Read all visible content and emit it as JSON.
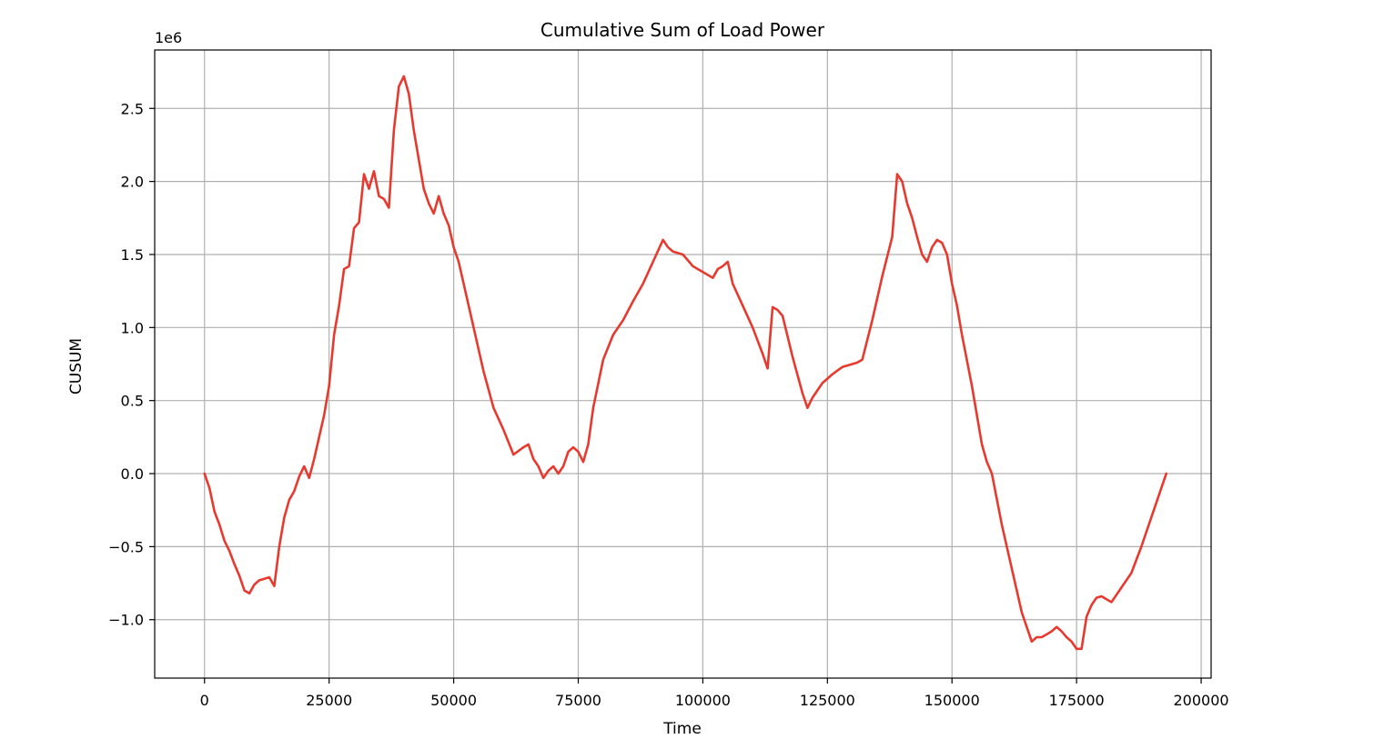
{
  "chart_data": {
    "type": "line",
    "title": "Cumulative Sum of Load Power",
    "xlabel": "Time",
    "ylabel": "CUSUM",
    "y_offset_label": "1e6",
    "xlim": [
      -10000,
      202000
    ],
    "ylim": [
      -1.4,
      2.9
    ],
    "grid": true,
    "line_color": "#e8392f",
    "x_ticks": [
      0,
      25000,
      50000,
      75000,
      100000,
      125000,
      150000,
      175000,
      200000
    ],
    "y_ticks": [
      -1.0,
      -0.5,
      0.0,
      0.5,
      1.0,
      1.5,
      2.0,
      2.5
    ],
    "x_tick_labels": [
      "0",
      "25000",
      "50000",
      "75000",
      "100000",
      "125000",
      "150000",
      "175000",
      "200000"
    ],
    "y_tick_labels": [
      "−1.0",
      "−0.5",
      "0.0",
      "0.5",
      "1.0",
      "1.5",
      "2.0",
      "2.5"
    ],
    "series": [
      {
        "x": [
          0,
          1000,
          2000,
          3000,
          4000,
          5000,
          6000,
          7000,
          8000,
          9000,
          10000,
          11000,
          12000,
          13000,
          14000,
          15000,
          16000,
          17000,
          18000,
          19000,
          20000,
          21000,
          22000,
          23000,
          24000,
          25000,
          26000,
          27000,
          28000,
          29000,
          30000,
          31000,
          32000,
          33000,
          34000,
          35000,
          36000,
          37000,
          38000,
          39000,
          40000,
          41000,
          42000,
          43000,
          44000,
          45000,
          46000,
          47000,
          48000,
          49000,
          50000,
          51000,
          52000,
          53000,
          54000,
          56000,
          58000,
          60000,
          62000,
          64000,
          65000,
          66000,
          67000,
          68000,
          69000,
          70000,
          71000,
          72000,
          73000,
          74000,
          75000,
          76000,
          77000,
          78000,
          80000,
          82000,
          84000,
          86000,
          88000,
          90000,
          92000,
          93000,
          94000,
          96000,
          98000,
          100000,
          102000,
          103000,
          104000,
          105000,
          106000,
          108000,
          110000,
          112000,
          113000,
          114000,
          115000,
          116000,
          118000,
          120000,
          121000,
          122000,
          124000,
          126000,
          128000,
          130000,
          131000,
          132000,
          134000,
          136000,
          138000,
          139000,
          140000,
          141000,
          142000,
          143000,
          144000,
          145000,
          146000,
          147000,
          148000,
          149000,
          150000,
          151000,
          152000,
          154000,
          156000,
          157000,
          158000,
          160000,
          162000,
          164000,
          166000,
          167000,
          168000,
          170000,
          171000,
          172000,
          173000,
          174000,
          175000,
          176000,
          177000,
          178000,
          179000,
          180000,
          182000,
          184000,
          186000,
          188000,
          190000,
          192000,
          193000
        ],
        "y": [
          0.0,
          -0.1,
          -0.26,
          -0.35,
          -0.46,
          -0.53,
          -0.62,
          -0.7,
          -0.8,
          -0.82,
          -0.76,
          -0.73,
          -0.72,
          -0.71,
          -0.77,
          -0.5,
          -0.3,
          -0.18,
          -0.12,
          -0.02,
          0.05,
          -0.03,
          0.1,
          0.25,
          0.4,
          0.6,
          0.95,
          1.15,
          1.4,
          1.42,
          1.68,
          1.72,
          2.05,
          1.95,
          2.07,
          1.9,
          1.88,
          1.82,
          2.35,
          2.65,
          2.72,
          2.6,
          2.35,
          2.15,
          1.95,
          1.85,
          1.78,
          1.9,
          1.78,
          1.7,
          1.55,
          1.45,
          1.3,
          1.15,
          1.0,
          0.7,
          0.45,
          0.3,
          0.13,
          0.18,
          0.2,
          0.1,
          0.05,
          -0.03,
          0.02,
          0.05,
          0.0,
          0.05,
          0.15,
          0.18,
          0.15,
          0.08,
          0.2,
          0.45,
          0.78,
          0.95,
          1.05,
          1.18,
          1.3,
          1.45,
          1.6,
          1.55,
          1.52,
          1.5,
          1.42,
          1.38,
          1.34,
          1.4,
          1.42,
          1.45,
          1.3,
          1.15,
          1.0,
          0.82,
          0.72,
          1.14,
          1.12,
          1.08,
          0.8,
          0.55,
          0.45,
          0.52,
          0.62,
          0.68,
          0.73,
          0.75,
          0.76,
          0.78,
          1.05,
          1.35,
          1.62,
          2.05,
          2.0,
          1.85,
          1.75,
          1.62,
          1.5,
          1.45,
          1.55,
          1.6,
          1.58,
          1.5,
          1.3,
          1.15,
          0.95,
          0.6,
          0.2,
          0.08,
          0.0,
          -0.35,
          -0.65,
          -0.95,
          -1.15,
          -1.12,
          -1.12,
          -1.08,
          -1.05,
          -1.08,
          -1.12,
          -1.15,
          -1.2,
          -1.2,
          -0.98,
          -0.9,
          -0.85,
          -0.84,
          -0.88,
          -0.78,
          -0.68,
          -0.5,
          -0.3,
          -0.1,
          0.0
        ]
      }
    ]
  }
}
